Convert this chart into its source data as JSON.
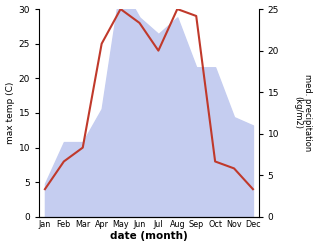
{
  "months": [
    "Jan",
    "Feb",
    "Mar",
    "Apr",
    "May",
    "Jun",
    "Jul",
    "Aug",
    "Sep",
    "Oct",
    "Nov",
    "Dec"
  ],
  "temperature": [
    4,
    8,
    10,
    25,
    30,
    28,
    24,
    30,
    29,
    8,
    7,
    4
  ],
  "precipitation": [
    4,
    9,
    9,
    13,
    28,
    24,
    22,
    24,
    18,
    18,
    12,
    11
  ],
  "temp_color": "#c0392b",
  "precip_color_fill": "#c5cdf0",
  "temp_ylim": [
    0,
    30
  ],
  "precip_ylim": [
    0,
    25
  ],
  "xlabel": "date (month)",
  "ylabel_left": "max temp (C)",
  "ylabel_right": "med. precipitation\n(kg/m2)",
  "bg_color": "#ffffff",
  "temp_linewidth": 1.5
}
